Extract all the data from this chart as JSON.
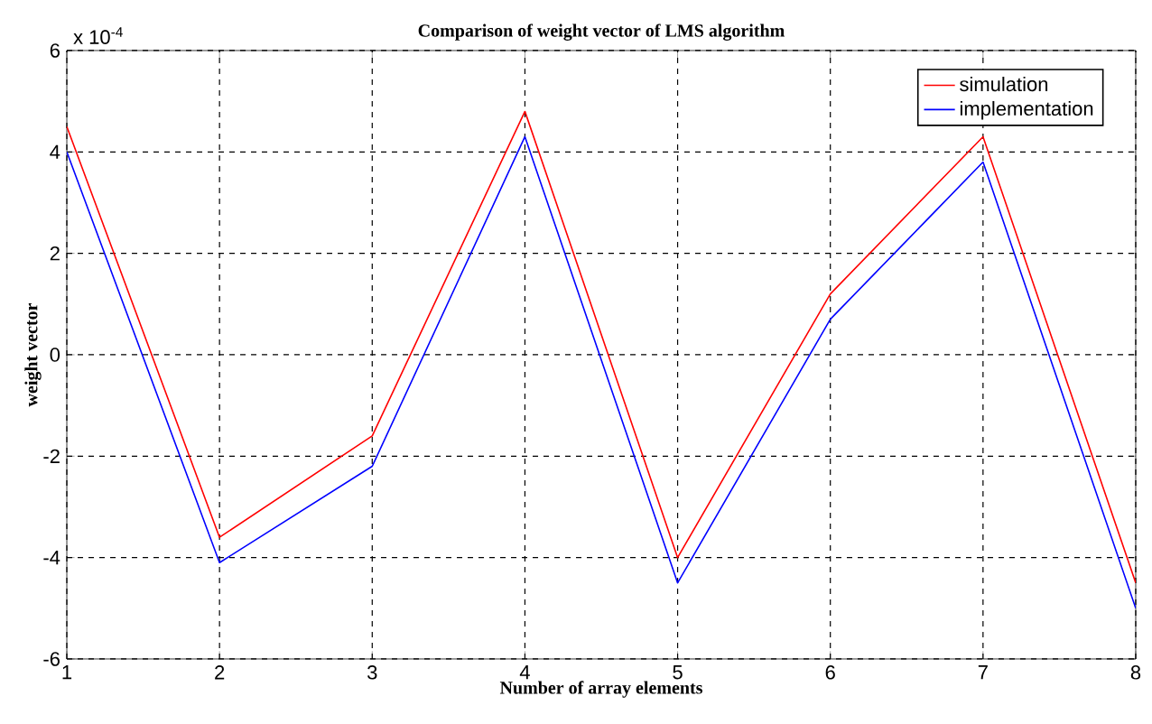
{
  "chart_data": {
    "type": "line",
    "title": "Comparison of weight vector of LMS algorithm",
    "xlabel": "Number of array elements",
    "ylabel": "weight vector",
    "annotations": [
      "x 10$^{-4}$"
    ],
    "x": [
      1,
      2,
      3,
      4,
      5,
      6,
      7,
      8
    ],
    "series": [
      {
        "name": "simulation",
        "color": "#ff0000",
        "values": [
          4.5,
          -3.6,
          -1.6,
          4.8,
          -4.0,
          1.2,
          4.3,
          -4.5
        ]
      },
      {
        "name": "implementation",
        "color": "#0000ff",
        "values": [
          4.0,
          -4.1,
          -2.2,
          4.3,
          -4.5,
          0.7,
          3.8,
          -5.0
        ]
      }
    ],
    "xlim": [
      1,
      8
    ],
    "xticks": [
      1,
      2,
      3,
      4,
      5,
      6,
      7,
      8
    ],
    "ylim": [
      -6,
      6
    ],
    "yticks": [
      -6,
      -4,
      -2,
      0,
      2,
      4,
      6
    ],
    "grid": true,
    "legend": "top right",
    "marker": "none",
    "line_style": "solid"
  }
}
